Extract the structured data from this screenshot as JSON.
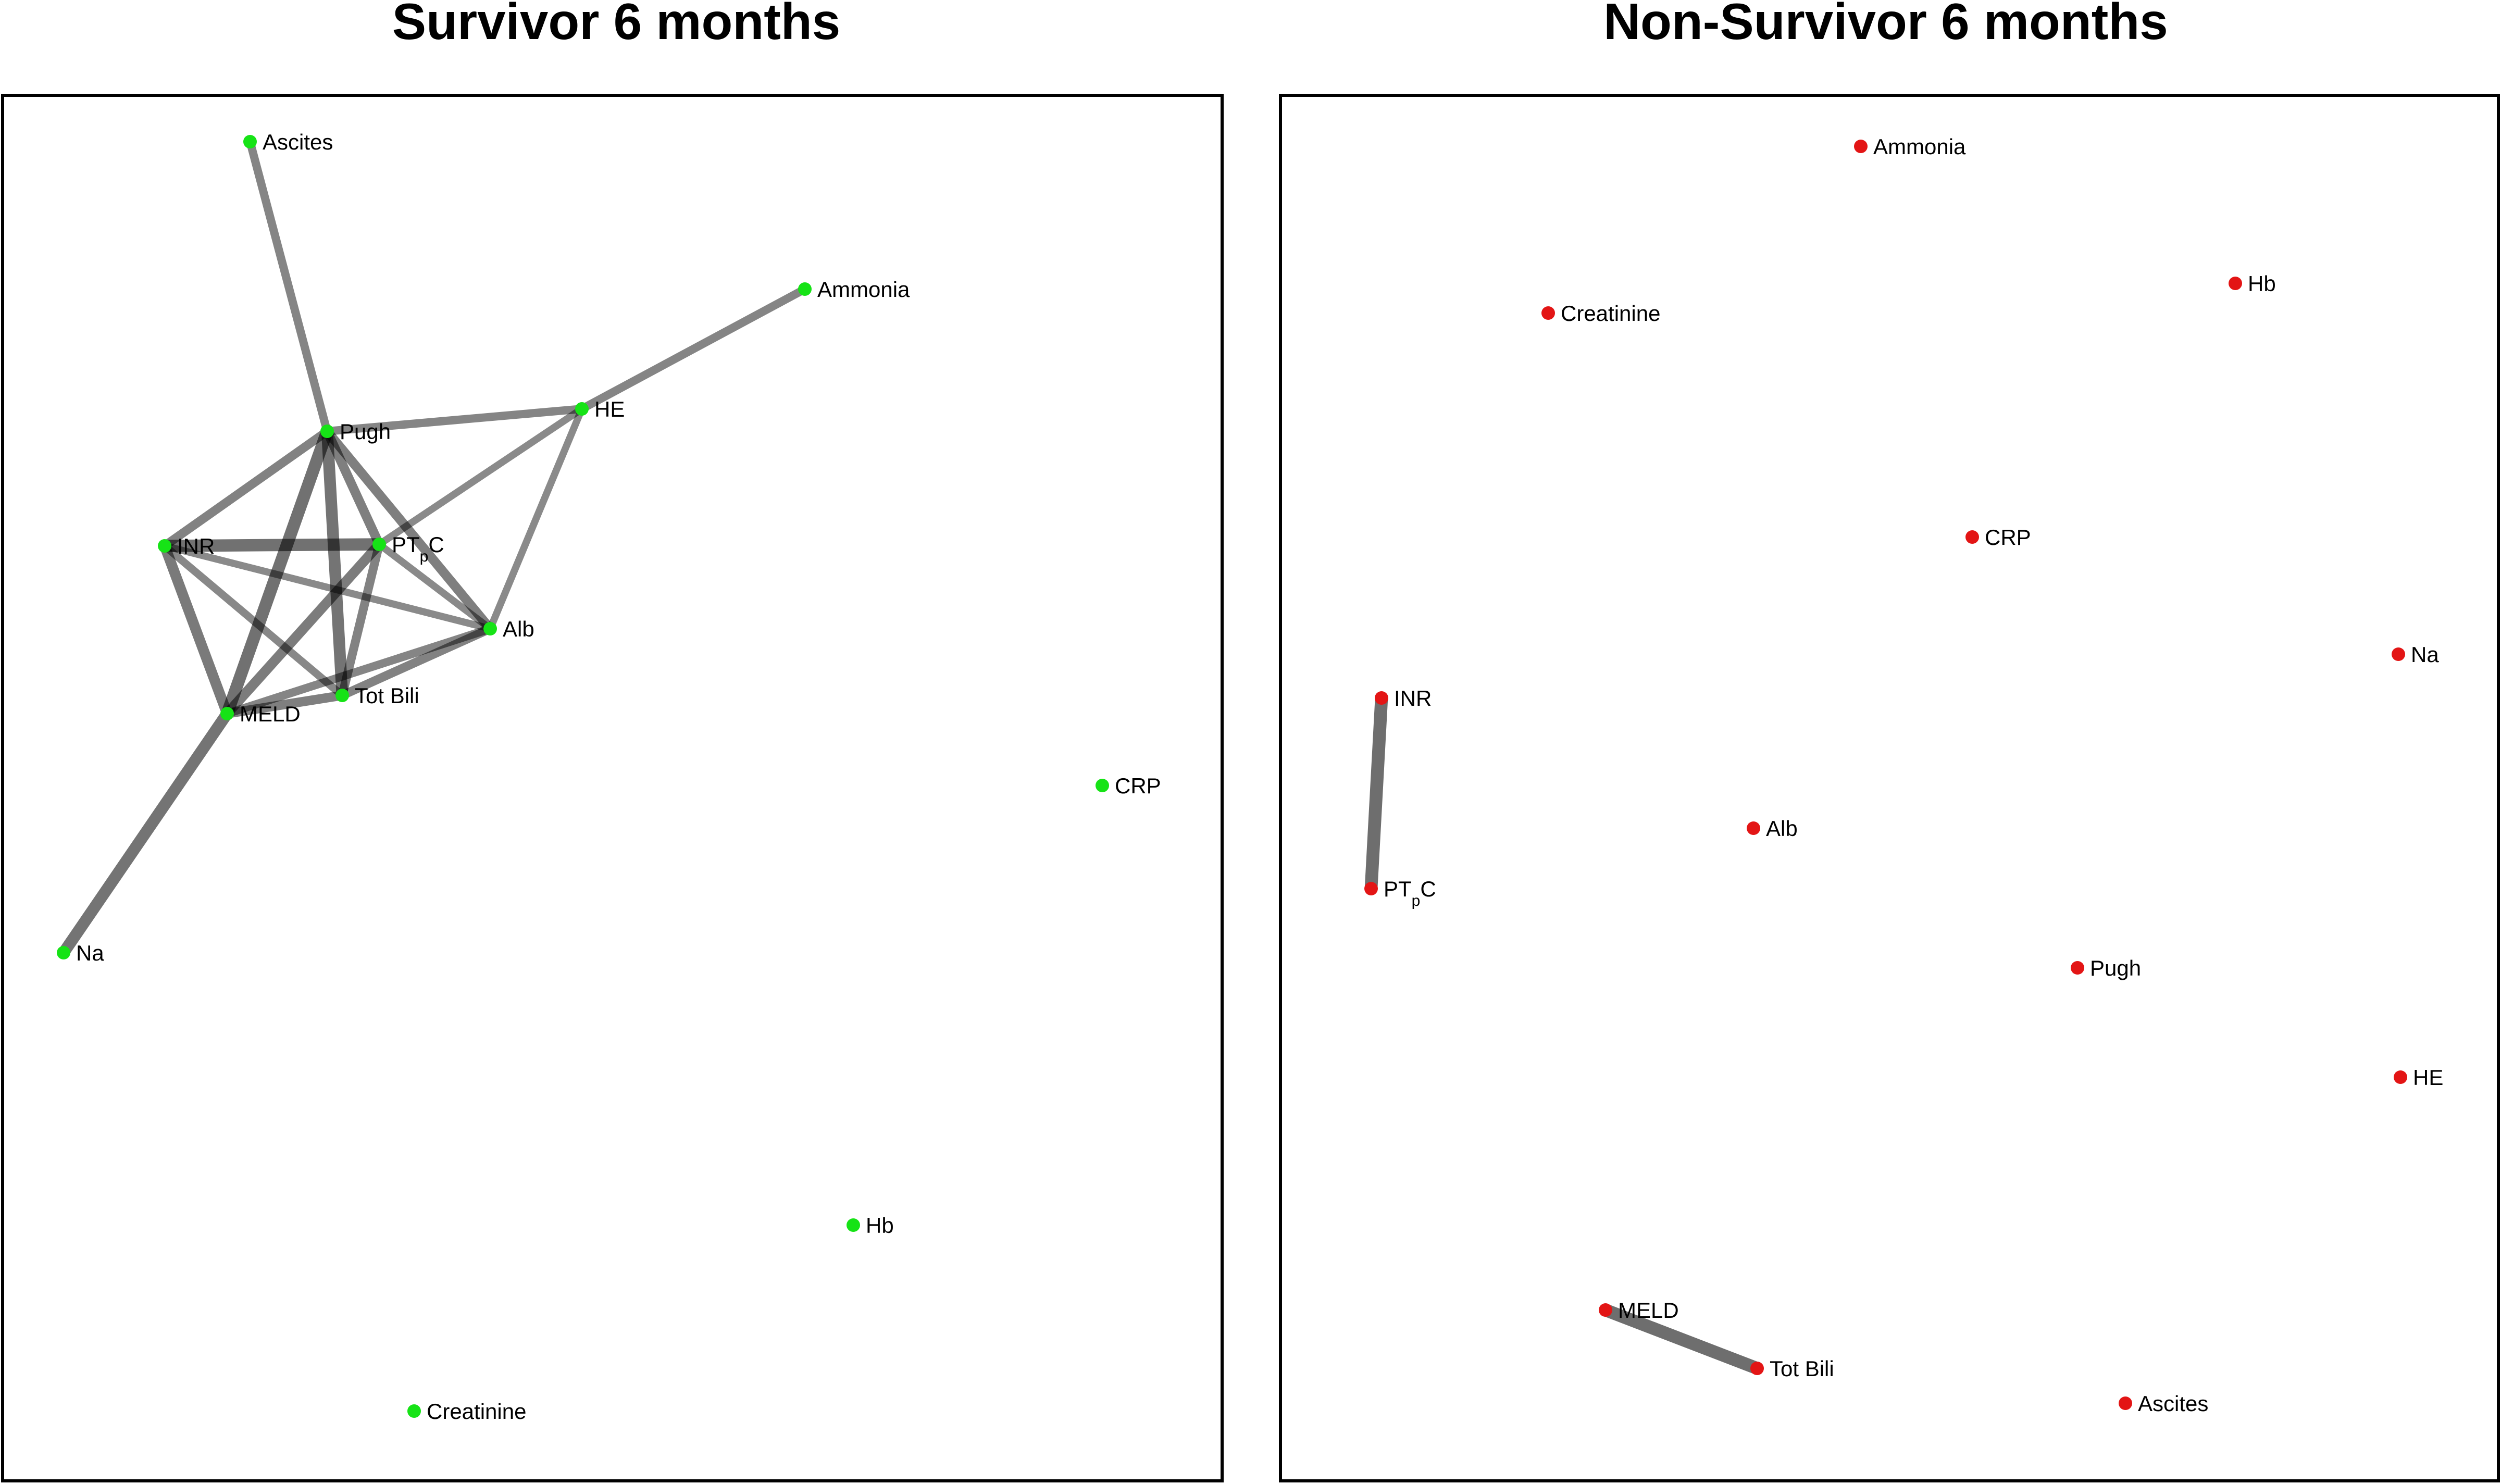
{
  "colors": {
    "survivor_node": "#16e316",
    "non_survivor_node": "#e31515",
    "edge": "#000000"
  },
  "panels": [
    {
      "id": "survivor",
      "title": "Survivor 6 months",
      "node_color": "#16e316",
      "nodes": [
        {
          "id": "ascites",
          "label": "Ascites"
        },
        {
          "id": "ammonia",
          "label": "Ammonia"
        },
        {
          "id": "he",
          "label": "HE"
        },
        {
          "id": "pugh",
          "label": "Pugh"
        },
        {
          "id": "inr",
          "label": "INR"
        },
        {
          "id": "ptpc",
          "label": "PT",
          "label_sub": "p",
          "label_end": "C"
        },
        {
          "id": "alb",
          "label": "Alb"
        },
        {
          "id": "totbili",
          "label": "Tot Bili"
        },
        {
          "id": "meld",
          "label": "MELD"
        },
        {
          "id": "crp",
          "label": "CRP"
        },
        {
          "id": "na",
          "label": "Na"
        },
        {
          "id": "hb",
          "label": "Hb"
        },
        {
          "id": "creatinine",
          "label": "Creatinine"
        }
      ],
      "edges": [
        {
          "source": "ascites",
          "target": "pugh",
          "strength": 0.45
        },
        {
          "source": "ammonia",
          "target": "he",
          "strength": 0.45
        },
        {
          "source": "pugh",
          "target": "he",
          "strength": 0.45
        },
        {
          "source": "pugh",
          "target": "inr",
          "strength": 0.5
        },
        {
          "source": "pugh",
          "target": "ptpc",
          "strength": 0.55
        },
        {
          "source": "pugh",
          "target": "alb",
          "strength": 0.55
        },
        {
          "source": "pugh",
          "target": "totbili",
          "strength": 0.75
        },
        {
          "source": "pugh",
          "target": "meld",
          "strength": 0.8
        },
        {
          "source": "he",
          "target": "ptpc",
          "strength": 0.35
        },
        {
          "source": "he",
          "target": "alb",
          "strength": 0.35
        },
        {
          "source": "inr",
          "target": "ptpc",
          "strength": 0.8
        },
        {
          "source": "inr",
          "target": "meld",
          "strength": 0.65
        },
        {
          "source": "inr",
          "target": "totbili",
          "strength": 0.4
        },
        {
          "source": "inr",
          "target": "alb",
          "strength": 0.35
        },
        {
          "source": "ptpc",
          "target": "meld",
          "strength": 0.6
        },
        {
          "source": "ptpc",
          "target": "totbili",
          "strength": 0.5
        },
        {
          "source": "ptpc",
          "target": "alb",
          "strength": 0.35
        },
        {
          "source": "meld",
          "target": "totbili",
          "strength": 0.55
        },
        {
          "source": "meld",
          "target": "alb",
          "strength": 0.45
        },
        {
          "source": "totbili",
          "target": "alb",
          "strength": 0.5
        },
        {
          "source": "meld",
          "target": "na",
          "strength": 0.75
        }
      ]
    },
    {
      "id": "non_survivor",
      "title": "Non-Survivor 6 months",
      "node_color": "#e31515",
      "nodes": [
        {
          "id": "ammonia",
          "label": "Ammonia"
        },
        {
          "id": "creatinine",
          "label": "Creatinine"
        },
        {
          "id": "hb",
          "label": "Hb"
        },
        {
          "id": "crp",
          "label": "CRP"
        },
        {
          "id": "na",
          "label": "Na"
        },
        {
          "id": "inr",
          "label": "INR"
        },
        {
          "id": "alb",
          "label": "Alb"
        },
        {
          "id": "ptpc",
          "label": "PT",
          "label_sub": "p",
          "label_end": "C"
        },
        {
          "id": "pugh",
          "label": "Pugh"
        },
        {
          "id": "he",
          "label": "HE"
        },
        {
          "id": "meld",
          "label": "MELD"
        },
        {
          "id": "totbili",
          "label": "Tot Bili"
        },
        {
          "id": "ascites",
          "label": "Ascites"
        }
      ],
      "edges": [
        {
          "source": "inr",
          "target": "ptpc",
          "strength": 0.85
        },
        {
          "source": "meld",
          "target": "totbili",
          "strength": 0.85
        }
      ]
    }
  ]
}
